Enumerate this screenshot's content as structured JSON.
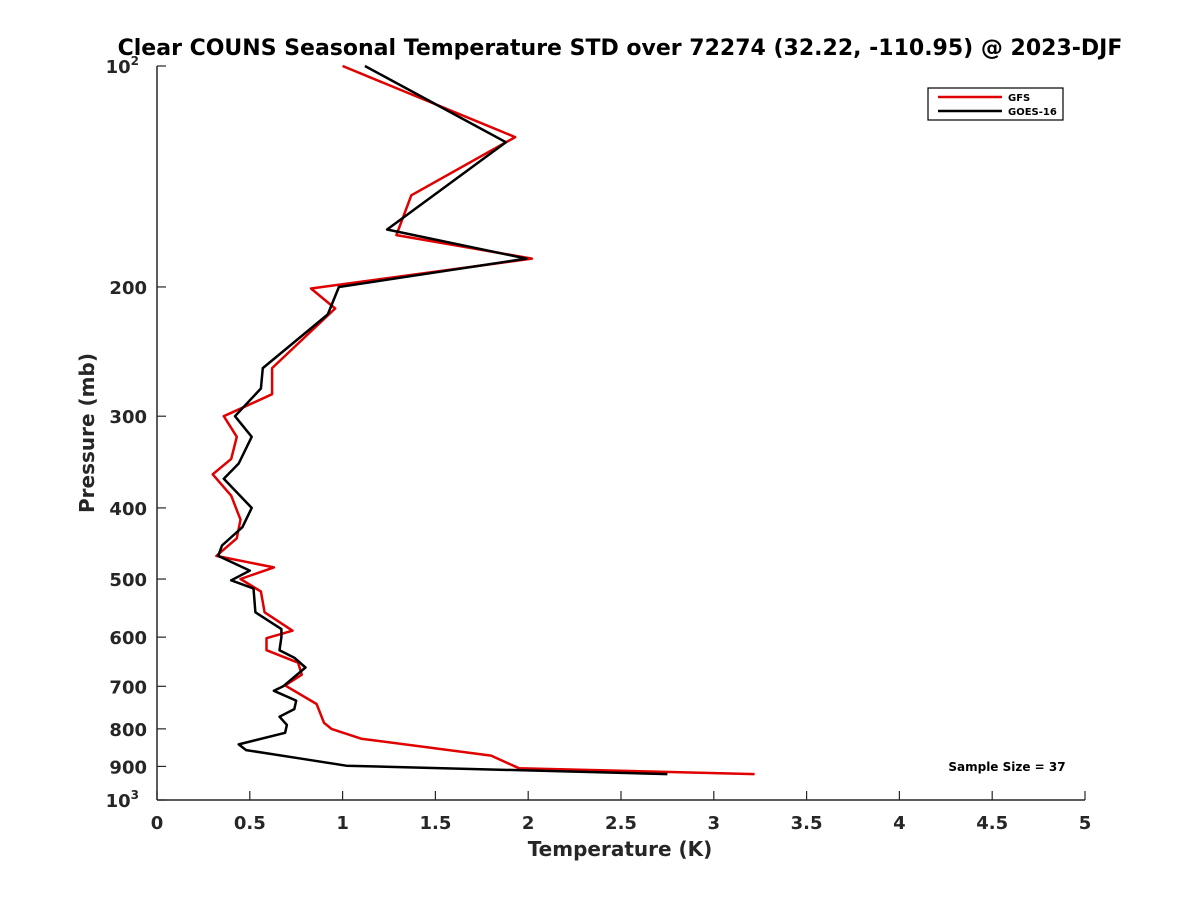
{
  "chart_data": {
    "type": "line",
    "title": "Clear COUNS Seasonal Temperature STD over 72274 (32.22, -110.95) @ 2023-DJF",
    "xlabel": "Temperature (K)",
    "ylabel": "Pressure (mb)",
    "xlim": [
      0,
      5
    ],
    "ylim": [
      100,
      1000
    ],
    "y_scale": "log",
    "y_reversed": true,
    "grid": false,
    "legend_position": "top-right",
    "x_ticks": [
      "0",
      "0.5",
      "1",
      "1.5",
      "2",
      "2.5",
      "3",
      "3.5",
      "4",
      "4.5",
      "5"
    ],
    "x_tick_values": [
      0,
      0.5,
      1,
      1.5,
      2,
      2.5,
      3,
      3.5,
      4,
      4.5,
      5
    ],
    "y_ticks": [
      {
        "value": 100,
        "base": "10",
        "exp": "2"
      },
      {
        "value": 200,
        "base": "200",
        "exp": ""
      },
      {
        "value": 300,
        "base": "300",
        "exp": ""
      },
      {
        "value": 400,
        "base": "400",
        "exp": ""
      },
      {
        "value": 500,
        "base": "500",
        "exp": ""
      },
      {
        "value": 600,
        "base": "600",
        "exp": ""
      },
      {
        "value": 700,
        "base": "700",
        "exp": ""
      },
      {
        "value": 800,
        "base": "800",
        "exp": ""
      },
      {
        "value": 900,
        "base": "900",
        "exp": ""
      },
      {
        "value": 1000,
        "base": "10",
        "exp": "3"
      }
    ],
    "annotation": "Sample Size = 37",
    "series": [
      {
        "name": "GFS",
        "color": "#e00000",
        "points": [
          [
            1.0,
            100
          ],
          [
            1.93,
            125
          ],
          [
            1.37,
            150
          ],
          [
            1.29,
            170
          ],
          [
            2.02,
            183
          ],
          [
            0.83,
            201
          ],
          [
            0.96,
            214
          ],
          [
            0.62,
            258
          ],
          [
            0.62,
            280
          ],
          [
            0.36,
            300
          ],
          [
            0.43,
            320
          ],
          [
            0.4,
            343
          ],
          [
            0.3,
            360
          ],
          [
            0.4,
            385
          ],
          [
            0.45,
            415
          ],
          [
            0.43,
            440
          ],
          [
            0.32,
            465
          ],
          [
            0.63,
            482
          ],
          [
            0.45,
            500
          ],
          [
            0.56,
            520
          ],
          [
            0.58,
            555
          ],
          [
            0.73,
            588
          ],
          [
            0.59,
            602
          ],
          [
            0.59,
            625
          ],
          [
            0.76,
            650
          ],
          [
            0.78,
            675
          ],
          [
            0.69,
            698
          ],
          [
            0.86,
            740
          ],
          [
            0.9,
            785
          ],
          [
            0.94,
            800
          ],
          [
            1.1,
            825
          ],
          [
            1.8,
            870
          ],
          [
            1.95,
            905
          ],
          [
            3.22,
            922
          ]
        ]
      },
      {
        "name": "GOES-16",
        "color": "#000000",
        "points": [
          [
            1.12,
            100
          ],
          [
            1.88,
            127
          ],
          [
            1.24,
            167
          ],
          [
            1.99,
            183
          ],
          [
            0.98,
            200
          ],
          [
            0.92,
            218
          ],
          [
            0.57,
            258
          ],
          [
            0.56,
            275
          ],
          [
            0.42,
            300
          ],
          [
            0.51,
            320
          ],
          [
            0.44,
            348
          ],
          [
            0.36,
            365
          ],
          [
            0.51,
            400
          ],
          [
            0.46,
            425
          ],
          [
            0.35,
            450
          ],
          [
            0.33,
            465
          ],
          [
            0.5,
            487
          ],
          [
            0.4,
            502
          ],
          [
            0.52,
            515
          ],
          [
            0.53,
            555
          ],
          [
            0.67,
            585
          ],
          [
            0.67,
            600
          ],
          [
            0.66,
            625
          ],
          [
            0.74,
            640
          ],
          [
            0.8,
            660
          ],
          [
            0.68,
            700
          ],
          [
            0.63,
            710
          ],
          [
            0.75,
            732
          ],
          [
            0.74,
            752
          ],
          [
            0.66,
            770
          ],
          [
            0.7,
            790
          ],
          [
            0.69,
            810
          ],
          [
            0.44,
            840
          ],
          [
            0.48,
            855
          ],
          [
            0.8,
            880
          ],
          [
            1.02,
            898
          ],
          [
            2.75,
            922
          ]
        ]
      }
    ]
  }
}
